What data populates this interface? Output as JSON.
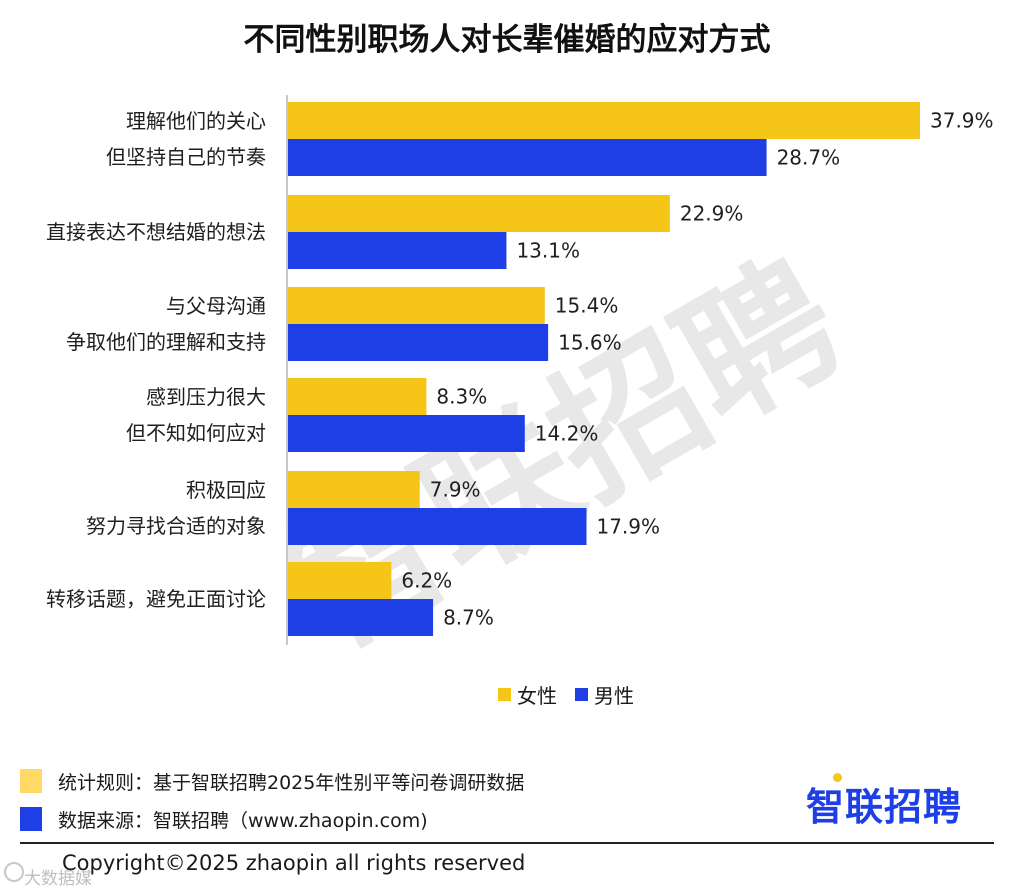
{
  "title": "不同性别职场人对长辈催婚的应对方式",
  "colors": {
    "female": "#F5C518",
    "male": "#1F3FE6",
    "watermark": "#e8e8e8",
    "logo": "#1F3FE6"
  },
  "chart_data": {
    "type": "bar",
    "orientation": "horizontal",
    "categories": [
      [
        "理解他们的关心",
        "但坚持自己的节奏"
      ],
      [
        "直接表达不想结婚的想法"
      ],
      [
        "与父母沟通",
        "争取他们的理解和支持"
      ],
      [
        "感到压力很大",
        "但不知如何应对"
      ],
      [
        "积极回应",
        "努力寻找合适的对象"
      ],
      [
        "转移话题，避免正面讨论"
      ]
    ],
    "series": [
      {
        "name": "女性",
        "color": "#F5C518",
        "values": [
          37.9,
          22.9,
          15.4,
          8.3,
          7.9,
          6.2
        ],
        "labels": [
          "37.9%",
          "22.9%",
          "15.4%",
          "8.3%",
          "7.9%",
          "6.2%"
        ]
      },
      {
        "name": "男性",
        "color": "#1F3FE6",
        "values": [
          28.7,
          13.1,
          15.6,
          14.2,
          17.9,
          8.7
        ],
        "labels": [
          "28.7%",
          "13.1%",
          "15.6%",
          "14.2%",
          "17.9%",
          "8.7%"
        ]
      }
    ],
    "xlim": [
      0,
      40
    ],
    "unit": "%",
    "grid": false,
    "legend": "bottom"
  },
  "watermark": "智联招聘",
  "notes": [
    {
      "text": "统计规则：基于智联招聘2025年性别平等问卷调研数据",
      "color": "#FFD966"
    },
    {
      "text": "数据来源：智联招聘（www.zhaopin.com)",
      "color": "#1F3FE6"
    }
  ],
  "logo": "智联招聘",
  "copyright": "Copyright©2025 zhaopin all rights reserved",
  "bottom_watermark": "大数据媒"
}
